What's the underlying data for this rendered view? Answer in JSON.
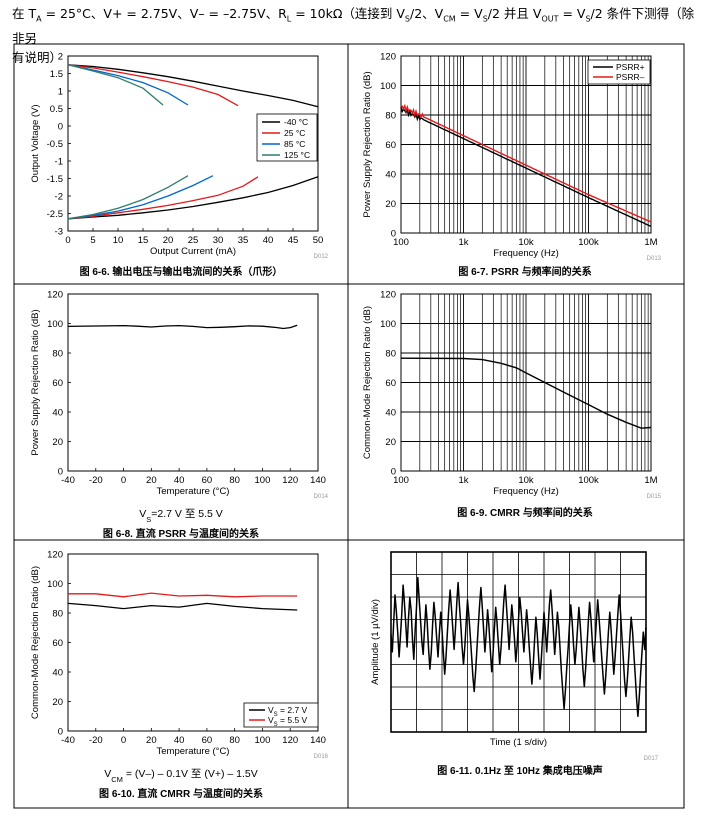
{
  "header": {
    "line1_html": "在 T<sub>A</sub> = 25°C、V+ = 2.75V、V– = –2.75V、R<sub>L</sub> = 10kΩ（连接到 V<sub>S</sub>/2、V<sub>CM</sub> = V<sub>S</sub>/2 并且 V<sub>OUT</sub> = V<sub>S</sub>/2 条件下测得（除非另",
    "line2": "有说明）"
  },
  "chart_data": [
    {
      "id": "fig6_6",
      "type": "line",
      "caption": "图 6-6. 输出电压与输出电流间的关系（爪形）",
      "code": "D012",
      "xlabel": "Output Current (mA)",
      "ylabel": "Output Voltage (V)",
      "xlim": [
        0,
        50
      ],
      "ylim": [
        -3,
        2
      ],
      "xticks": [
        "0",
        "5",
        "10",
        "15",
        "20",
        "25",
        "30",
        "35",
        "40",
        "45",
        "50"
      ],
      "yticks": [
        "2",
        "1.5",
        "1",
        "0.5",
        "0",
        "-0.5",
        "-1",
        "-1.5",
        "-2",
        "-2.5",
        "-3"
      ],
      "grid": false,
      "legend": "center-right",
      "series": [
        {
          "name": "-40 °C",
          "color": "#000000",
          "top": [
            [
              0,
              1.75
            ],
            [
              5,
              1.7
            ],
            [
              10,
              1.62
            ],
            [
              15,
              1.52
            ],
            [
              20,
              1.41
            ],
            [
              25,
              1.28
            ],
            [
              30,
              1.14
            ],
            [
              35,
              1.0
            ],
            [
              40,
              0.87
            ],
            [
              45,
              0.73
            ],
            [
              50,
              0.55
            ]
          ],
          "bottom": [
            [
              0,
              -2.65
            ],
            [
              5,
              -2.6
            ],
            [
              10,
              -2.55
            ],
            [
              15,
              -2.48
            ],
            [
              20,
              -2.4
            ],
            [
              25,
              -2.3
            ],
            [
              30,
              -2.18
            ],
            [
              35,
              -2.05
            ],
            [
              40,
              -1.9
            ],
            [
              45,
              -1.7
            ],
            [
              50,
              -1.45
            ]
          ]
        },
        {
          "name": "25 °C",
          "color": "#e31a1c",
          "top": [
            [
              0,
              1.75
            ],
            [
              5,
              1.66
            ],
            [
              10,
              1.54
            ],
            [
              15,
              1.41
            ],
            [
              20,
              1.27
            ],
            [
              25,
              1.11
            ],
            [
              30,
              0.9
            ],
            [
              34,
              0.58
            ]
          ],
          "bottom": [
            [
              0,
              -2.65
            ],
            [
              5,
              -2.58
            ],
            [
              10,
              -2.48
            ],
            [
              15,
              -2.38
            ],
            [
              20,
              -2.27
            ],
            [
              25,
              -2.13
            ],
            [
              30,
              -1.98
            ],
            [
              35,
              -1.72
            ],
            [
              38,
              -1.45
            ]
          ]
        },
        {
          "name": "85 °C",
          "color": "#0066cc",
          "top": [
            [
              0,
              1.75
            ],
            [
              5,
              1.6
            ],
            [
              10,
              1.44
            ],
            [
              15,
              1.24
            ],
            [
              20,
              0.95
            ],
            [
              24,
              0.6
            ]
          ],
          "bottom": [
            [
              0,
              -2.65
            ],
            [
              5,
              -2.55
            ],
            [
              10,
              -2.43
            ],
            [
              15,
              -2.25
            ],
            [
              20,
              -2.0
            ],
            [
              25,
              -1.7
            ],
            [
              29,
              -1.42
            ]
          ]
        },
        {
          "name": "125 °C",
          "color": "#2e7d6b",
          "top": [
            [
              0,
              1.75
            ],
            [
              5,
              1.57
            ],
            [
              10,
              1.38
            ],
            [
              15,
              1.08
            ],
            [
              19,
              0.6
            ]
          ],
          "bottom": [
            [
              0,
              -2.65
            ],
            [
              5,
              -2.53
            ],
            [
              10,
              -2.35
            ],
            [
              15,
              -2.1
            ],
            [
              20,
              -1.75
            ],
            [
              24,
              -1.42
            ]
          ]
        }
      ]
    },
    {
      "id": "fig6_7",
      "type": "line",
      "caption": "图 6-7. PSRR 与频率间的关系",
      "code": "D013",
      "xlabel": "Frequency (Hz)",
      "ylabel": "Power Supply Rejection Ratio (dB)",
      "xscale": "log",
      "xlim": [
        100,
        1000000
      ],
      "ylim": [
        0,
        120
      ],
      "xticks": [
        "100",
        "1k",
        "10k",
        "100k",
        "1M"
      ],
      "yticks": [
        "120",
        "100",
        "80",
        "60",
        "40",
        "20",
        "0"
      ],
      "grid": true,
      "legend": "top-right",
      "series": [
        {
          "name": "PSRR+",
          "color": "#000000",
          "points": [
            [
              100,
              84
            ],
            [
              1000,
              64
            ],
            [
              10000,
              44
            ],
            [
              100000,
              24
            ],
            [
              1000000,
              4.5
            ]
          ]
        },
        {
          "name": "PSRR–",
          "color": "#e31a1c",
          "points": [
            [
              100,
              86
            ],
            [
              1000,
              66
            ],
            [
              10000,
              46
            ],
            [
              100000,
              26
            ],
            [
              1000000,
              7.5
            ]
          ]
        }
      ]
    },
    {
      "id": "fig6_8",
      "type": "line",
      "caption": "图 6-8. 直流 PSRR 与温度间的关系",
      "subcaption": "V<tspan baseline-shift='sub' font-size='8'>S</tspan>=2.7 V 至 5.5 V",
      "subcaption_text": "VS=2.7 V 至 5.5 V",
      "code": "D014",
      "xlabel": "Temperature (°C)",
      "ylabel": "Power Supply Rejection Ratio (dB)",
      "xlim": [
        -40,
        140
      ],
      "ylim": [
        0,
        120
      ],
      "xticks": [
        "-40",
        "-20",
        "0",
        "20",
        "40",
        "60",
        "80",
        "100",
        "120",
        "140"
      ],
      "yticks": [
        "120",
        "100",
        "80",
        "60",
        "40",
        "20",
        "0"
      ],
      "grid": false,
      "series": [
        {
          "name": "",
          "color": "#000000",
          "points": [
            [
              -40,
              98
            ],
            [
              -20,
              98.3
            ],
            [
              0,
              98.6
            ],
            [
              10,
              98.2
            ],
            [
              20,
              97.6
            ],
            [
              30,
              98.3
            ],
            [
              40,
              98.6
            ],
            [
              50,
              98.0
            ],
            [
              60,
              97.2
            ],
            [
              70,
              97.4
            ],
            [
              80,
              97.8
            ],
            [
              90,
              98.4
            ],
            [
              100,
              98.2
            ],
            [
              110,
              97.3
            ],
            [
              115,
              96.6
            ],
            [
              120,
              97.2
            ],
            [
              125,
              98.8
            ]
          ]
        }
      ]
    },
    {
      "id": "fig6_9",
      "type": "line",
      "caption": "图 6-9. CMRR 与频率间的关系",
      "code": "D015",
      "xlabel": "Frequency (Hz)",
      "ylabel": "Common-Mode Rejection Ratio (dB)",
      "xscale": "log",
      "xlim": [
        100,
        1000000
      ],
      "ylim": [
        0,
        120
      ],
      "xticks": [
        "100",
        "1k",
        "10k",
        "100k",
        "1M"
      ],
      "yticks": [
        "120",
        "100",
        "80",
        "60",
        "40",
        "20",
        "0"
      ],
      "grid": true,
      "series": [
        {
          "name": "",
          "color": "#000000",
          "points": [
            [
              100,
              76.5
            ],
            [
              1000,
              76.3
            ],
            [
              2000,
              75.5
            ],
            [
              4000,
              73
            ],
            [
              7000,
              70
            ],
            [
              10000,
              66.5
            ],
            [
              20000,
              60
            ],
            [
              40000,
              53.5
            ],
            [
              100000,
              45
            ],
            [
              200000,
              38.5
            ],
            [
              400000,
              33
            ],
            [
              700000,
              29
            ],
            [
              1000000,
              29.5
            ]
          ]
        }
      ]
    },
    {
      "id": "fig6_10",
      "type": "line",
      "caption": "图 6-10. 直流 CMRR 与温度间的关系",
      "subcaption_text": "VCM = (V–) – 0.1V 至 (V+) – 1.5V",
      "code": "D016",
      "xlabel": "Temperature (°C)",
      "ylabel": "Common-Mode Rejection Ratio (dB)",
      "xlim": [
        -40,
        140
      ],
      "ylim": [
        0,
        120
      ],
      "xticks": [
        "-40",
        "-20",
        "0",
        "20",
        "40",
        "60",
        "80",
        "100",
        "120",
        "140"
      ],
      "yticks": [
        "120",
        "100",
        "80",
        "60",
        "40",
        "20",
        "0"
      ],
      "grid": false,
      "legend": "bottom-right",
      "series": [
        {
          "name": "VS = 2.7 V",
          "color": "#000000",
          "points": [
            [
              -40,
              86.5
            ],
            [
              -20,
              85
            ],
            [
              0,
              83
            ],
            [
              20,
              85
            ],
            [
              40,
              84
            ],
            [
              60,
              86.5
            ],
            [
              80,
              84.5
            ],
            [
              100,
              83
            ],
            [
              125,
              82
            ]
          ]
        },
        {
          "name": "VS = 5.5 V",
          "color": "#e31a1c",
          "points": [
            [
              -40,
              93
            ],
            [
              -20,
              93
            ],
            [
              0,
              91
            ],
            [
              20,
              93.5
            ],
            [
              40,
              91.5
            ],
            [
              60,
              92
            ],
            [
              80,
              91
            ],
            [
              100,
              91.5
            ],
            [
              125,
              91.5
            ]
          ]
        }
      ]
    },
    {
      "id": "fig6_11",
      "type": "line",
      "caption": "图 6-11. 0.1Hz 至 10Hz 集成电压噪声",
      "code": "D017",
      "xlabel": "Time (1 s/div)",
      "ylabel": "Amplitude (1 µV/div)",
      "grid": true,
      "divisions": {
        "x": 10,
        "y": 8
      },
      "series": [
        {
          "name": "noise",
          "color": "#000000",
          "values": [
            0.3,
            -0.4,
            0.8,
            1.9,
            1.2,
            0.4,
            -0.6,
            0.2,
            1.1,
            2.3,
            1.6,
            0.7,
            -0.2,
            0.9,
            1.8,
            1.3,
            0.1,
            -0.7,
            0.5,
            1.4,
            2.6,
            1.7,
            0.9,
            0.0,
            -0.5,
            0.6,
            1.5,
            0.8,
            -0.3,
            -1.1,
            -0.4,
            0.7,
            1.6,
            1.0,
            0.2,
            -0.6,
            0.3,
            1.2,
            0.5,
            -0.4,
            -1.3,
            -0.6,
            0.4,
            1.3,
            2.1,
            1.4,
            0.6,
            -0.3,
            0.5,
            1.6,
            2.4,
            1.5,
            0.7,
            -0.2,
            -0.9,
            -0.2,
            0.8,
            1.7,
            1.1,
            0.3,
            -0.5,
            -1.4,
            -2.0,
            -1.2,
            -0.3,
            0.6,
            1.5,
            2.2,
            1.4,
            0.5,
            -0.4,
            0.4,
            1.3,
            0.6,
            -0.3,
            -1.2,
            -0.5,
            0.5,
            1.4,
            0.8,
            -0.1,
            -0.9,
            -0.2,
            0.7,
            1.6,
            2.3,
            1.5,
            0.6,
            -0.3,
            0.6,
            1.5,
            0.9,
            0.1,
            -0.8,
            -0.1,
            0.9,
            1.8,
            1.2,
            0.4,
            -0.4,
            0.4,
            1.3,
            0.7,
            -0.2,
            -1.0,
            -1.7,
            -0.9,
            0.1,
            1.0,
            0.3,
            -0.6,
            -1.5,
            -0.7,
            0.3,
            1.2,
            0.5,
            -0.4,
            0.5,
            1.5,
            2.1,
            1.3,
            0.4,
            -0.5,
            0.3,
            1.2,
            0.6,
            -0.3,
            -1.2,
            -2.0,
            -2.7,
            -1.9,
            -1.0,
            -0.2,
            0.7,
            1.5,
            0.8,
            -0.1,
            -0.9,
            -0.3,
            0.6,
            1.4,
            0.7,
            -0.2,
            -1.1,
            -1.8,
            -1.1,
            -0.2,
            0.8,
            1.6,
            0.9,
            0.0,
            -0.8,
            -0.1,
            0.8,
            1.7,
            1.0,
            0.2,
            -0.6,
            -1.4,
            -2.1,
            -1.4,
            -0.5,
            0.4,
            1.2,
            0.5,
            -0.4,
            -1.3,
            -0.6,
            0.3,
            1.1,
            1.9,
            1.2,
            0.3,
            -0.6,
            -1.5,
            -2.2,
            -1.6,
            -0.7,
            0.2,
            1.0,
            0.4,
            -0.5,
            -1.4,
            -2.3,
            -3.0,
            -2.2,
            -1.3,
            -0.4,
            0.4,
            -0.3,
            0.6
          ]
        }
      ]
    }
  ]
}
